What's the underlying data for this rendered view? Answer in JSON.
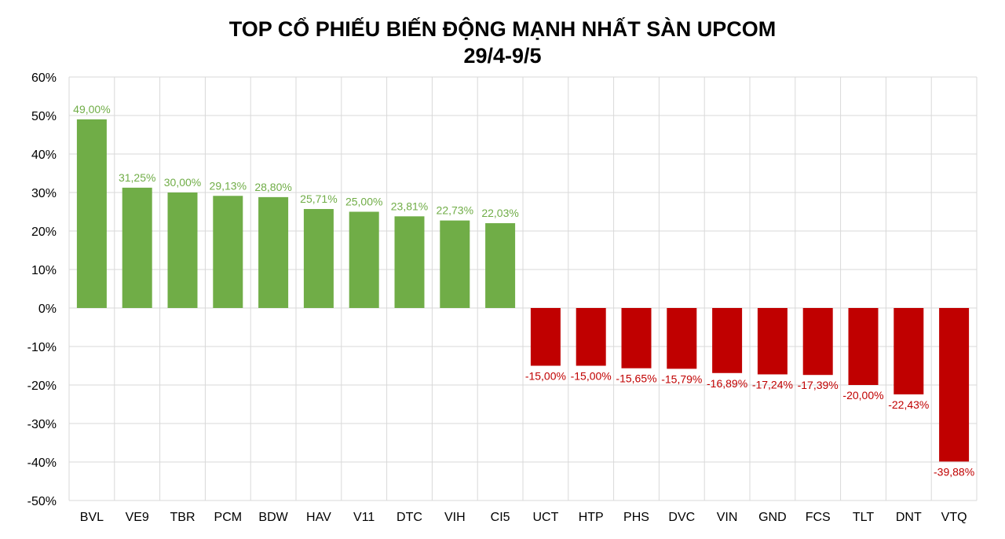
{
  "chart_data": {
    "type": "bar",
    "title": "TOP CỔ PHIẾU BIẾN ĐỘNG MẠNH NHẤT SÀN UPCOM",
    "subtitle": "29/4-9/5",
    "xlabel": "",
    "ylabel": "",
    "ylim": [
      -50,
      60
    ],
    "yticks": [
      60,
      50,
      40,
      30,
      20,
      10,
      0,
      -10,
      -20,
      -30,
      -40,
      -50
    ],
    "ytick_labels": [
      "60%",
      "50%",
      "40%",
      "30%",
      "20%",
      "10%",
      "0%",
      "-10%",
      "-20%",
      "-30%",
      "-40%",
      "-50%"
    ],
    "grid": true,
    "categories": [
      "BVL",
      "VE9",
      "TBR",
      "PCM",
      "BDW",
      "HAV",
      "V11",
      "DTC",
      "VIH",
      "CI5",
      "UCT",
      "HTP",
      "PHS",
      "DVC",
      "VIN",
      "GND",
      "FCS",
      "TLT",
      "DNT",
      "VTQ"
    ],
    "values": [
      49.0,
      31.25,
      30.0,
      29.13,
      28.8,
      25.71,
      25.0,
      23.81,
      22.73,
      22.03,
      -15.0,
      -15.0,
      -15.65,
      -15.79,
      -16.89,
      -17.24,
      -17.39,
      -20.0,
      -22.43,
      -39.88
    ],
    "data_labels": [
      "49,00%",
      "31,25%",
      "30,00%",
      "29,13%",
      "28,80%",
      "25,71%",
      "25,00%",
      "23,81%",
      "22,73%",
      "22,03%",
      "-15,00%",
      "-15,00%",
      "-15,65%",
      "-15,79%",
      "-16,89%",
      "-17,24%",
      "-17,39%",
      "-20,00%",
      "-22,43%",
      "-39,88%"
    ],
    "colors": {
      "positive": "#70AD47",
      "negative": "#C00000",
      "grid": "#D9D9D9"
    }
  }
}
